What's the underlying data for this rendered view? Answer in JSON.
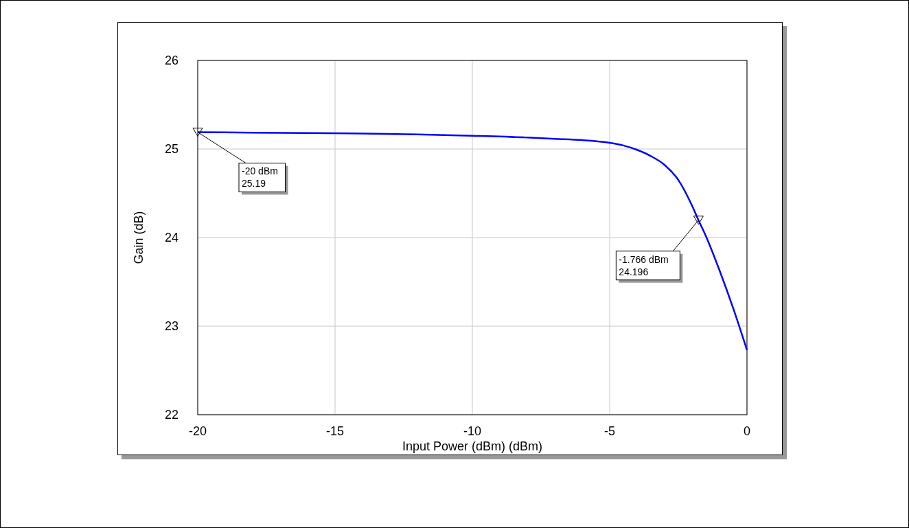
{
  "chart_data": {
    "type": "line",
    "xlabel": "Input Power (dBm) (dBm)",
    "ylabel": "Gain (dB)",
    "x": [
      -20,
      -18,
      -16,
      -14,
      -12,
      -10,
      -8,
      -7,
      -6,
      -5,
      -4.5,
      -4,
      -3.5,
      -3,
      -2.5,
      -2,
      -1.766,
      -1.5,
      -1,
      -0.5,
      0
    ],
    "series": [
      {
        "color": "#0000ff",
        "values": [
          25.19,
          25.185,
          25.18,
          25.175,
          25.165,
          25.15,
          25.13,
          25.115,
          25.1,
          25.07,
          25.04,
          24.99,
          24.92,
          24.82,
          24.65,
          24.36,
          24.196,
          24.02,
          23.63,
          23.2,
          22.73
        ]
      }
    ],
    "xlim": [
      -20,
      0
    ],
    "xticks": [
      -20,
      -15,
      -10,
      -5,
      0
    ],
    "ylim": [
      22,
      26
    ],
    "yticks": [
      22,
      23,
      24,
      25,
      26
    ],
    "grid": true,
    "marker": "none",
    "line_style": "solid",
    "annotations": [
      {
        "text": "-20 dBm\n25.19",
        "x": -20,
        "y": 25.19
      },
      {
        "text": "-1.766 dBm\n24.196",
        "x": -1.766,
        "y": 24.196
      }
    ]
  }
}
